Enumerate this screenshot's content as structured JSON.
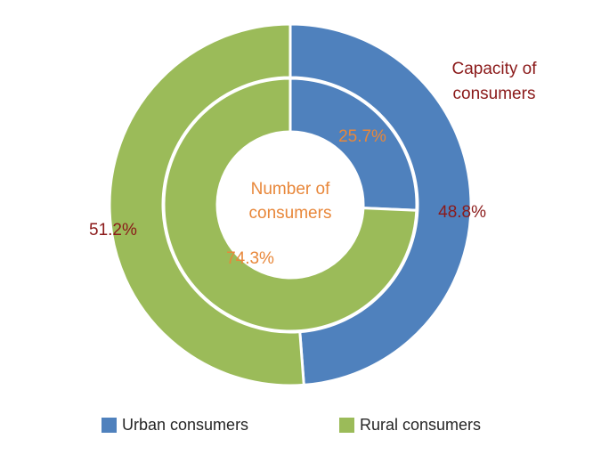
{
  "chart_data": {
    "type": "pie",
    "variant": "nested-donut",
    "categories": [
      "Urban consumers",
      "Rural consumers"
    ],
    "colors": [
      "#4f81bd",
      "#9bbb59"
    ],
    "series": [
      {
        "name": "Capacity of consumers",
        "ring": "outer",
        "values": [
          48.8,
          51.2
        ],
        "labels": [
          "48.8%",
          "51.2%"
        ],
        "label_color": "#8b1a1a"
      },
      {
        "name": "Number of consumers",
        "ring": "inner",
        "values": [
          25.7,
          74.3
        ],
        "labels": [
          "25.7%",
          "74.3%"
        ],
        "label_color": "#e8873a"
      }
    ],
    "ring_titles": {
      "outer": "Capacity of consumers",
      "outer_lines": [
        "Capacity of",
        "consumers"
      ],
      "inner": "Number of consumers",
      "inner_lines": [
        "Number of",
        "consumers"
      ]
    },
    "legend": {
      "position": "bottom",
      "items": [
        "Urban consumers",
        "Rural consumers"
      ]
    }
  }
}
